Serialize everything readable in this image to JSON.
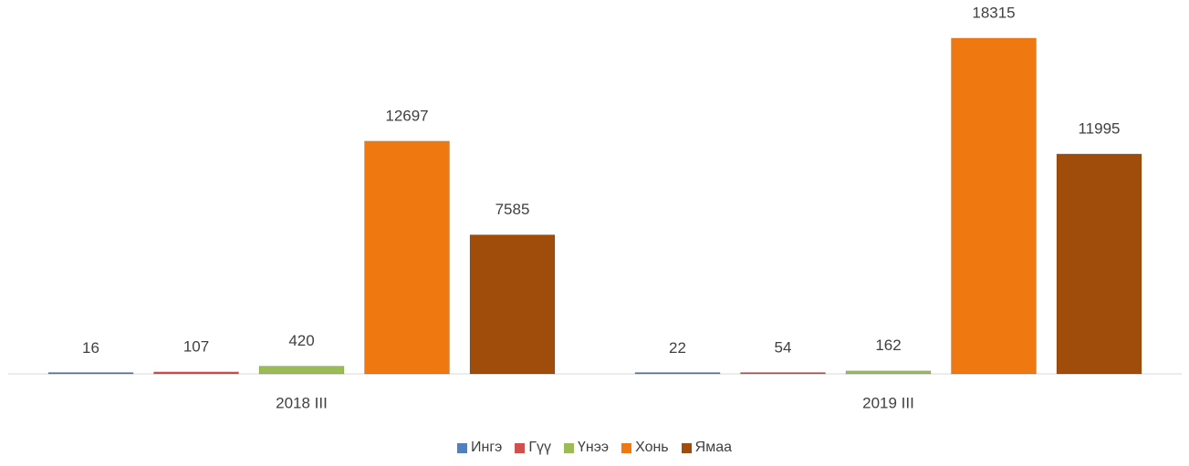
{
  "chart_data": {
    "type": "bar",
    "categories": [
      "2018 III",
      "2019 III"
    ],
    "series": [
      {
        "name": "Ингэ",
        "color": "#4f81bd",
        "values": [
          16,
          22
        ]
      },
      {
        "name": "Гүү",
        "color": "#d0504d",
        "values": [
          107,
          54
        ]
      },
      {
        "name": "Үнээ",
        "color": "#9bbb59",
        "values": [
          420,
          162
        ]
      },
      {
        "name": "Хонь",
        "color": "#f07810",
        "values": [
          12697,
          18315
        ]
      },
      {
        "name": "Ямаа",
        "color": "#a04c0a",
        "values": [
          7585,
          11995
        ]
      }
    ],
    "ylim": [
      0,
      20000
    ],
    "legend": "bottom"
  }
}
